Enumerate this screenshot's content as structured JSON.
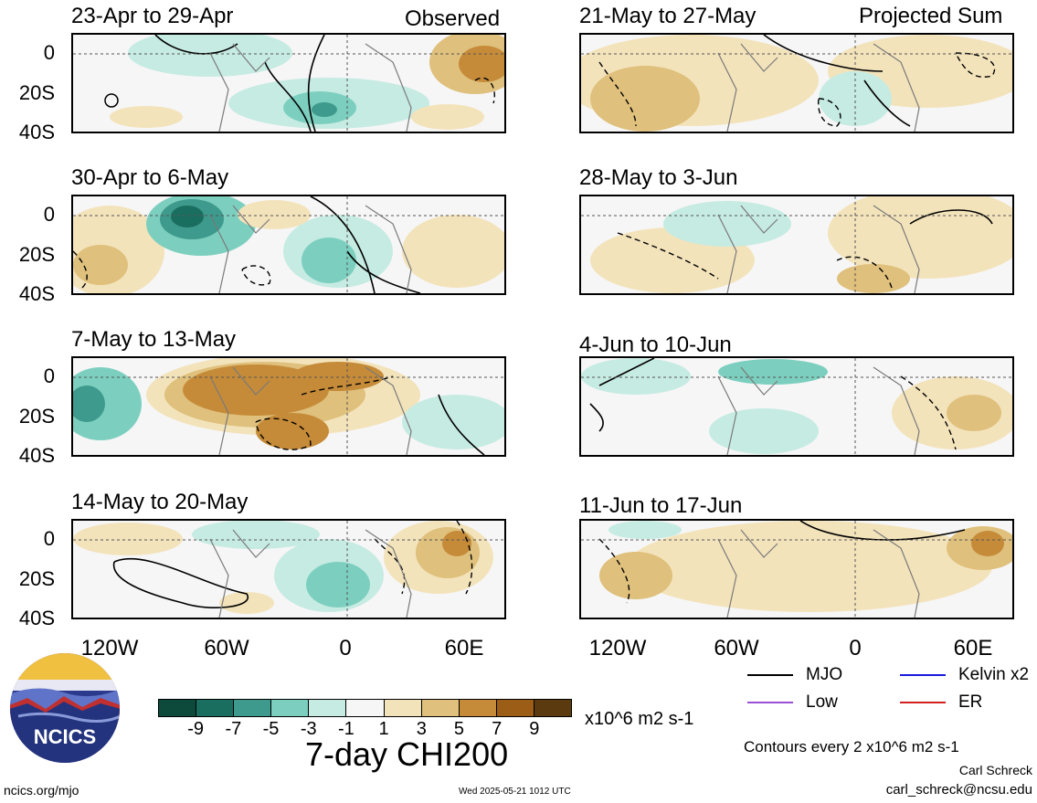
{
  "panels": [
    {
      "title": "23-Apr to 29-Apr",
      "tag": "Observed",
      "side": "left",
      "row": 0
    },
    {
      "title": "30-Apr to 6-May",
      "tag": "",
      "side": "left",
      "row": 1
    },
    {
      "title": "7-May to 13-May",
      "tag": "",
      "side": "left",
      "row": 2
    },
    {
      "title": "14-May to 20-May",
      "tag": "",
      "side": "left",
      "row": 3
    },
    {
      "title": "21-May to 27-May",
      "tag": "Projected Sum",
      "side": "right",
      "row": 0
    },
    {
      "title": "28-May to 3-Jun",
      "tag": "",
      "side": "right",
      "row": 1
    },
    {
      "title": "4-Jun to 10-Jun",
      "tag": "",
      "side": "right",
      "row": 2
    },
    {
      "title": "11-Jun to 17-Jun",
      "tag": "",
      "side": "right",
      "row": 3
    }
  ],
  "lat_labels": [
    "0",
    "20S",
    "40S"
  ],
  "lon_labels": [
    "120W",
    "60W",
    "0",
    "60E"
  ],
  "colorbar": {
    "labels": [
      "-9",
      "-7",
      "-5",
      "-3",
      "-1",
      "1",
      "3",
      "5",
      "7",
      "9"
    ],
    "colors": [
      "#0d4a3c",
      "#1a6e60",
      "#3e9a8c",
      "#7ccfbf",
      "#c6ebe2",
      "#f6f6f6",
      "#f3e3bb",
      "#dfc07c",
      "#c58b39",
      "#9c5e16",
      "#5c3a10"
    ],
    "units": "x10^6 m2 s-1"
  },
  "legend": {
    "items": [
      {
        "label": "MJO",
        "color": "#000000"
      },
      {
        "label": "Kelvin x2",
        "color": "#1a1adb"
      },
      {
        "label": "Low",
        "color": "#9b4fd6"
      },
      {
        "label": "ER",
        "color": "#d42020"
      }
    ],
    "contour_note": "Contours every 2 x10^6 m2 s-1"
  },
  "main_title": "7-day CHI200",
  "logo_text": "NCICS",
  "footer": {
    "url": "ncics.org/mjo",
    "timestamp": "Wed 2025-05-21 1012 UTC",
    "author": "Carl Schreck",
    "email": "carl_schreck@ncsu.edu"
  }
}
